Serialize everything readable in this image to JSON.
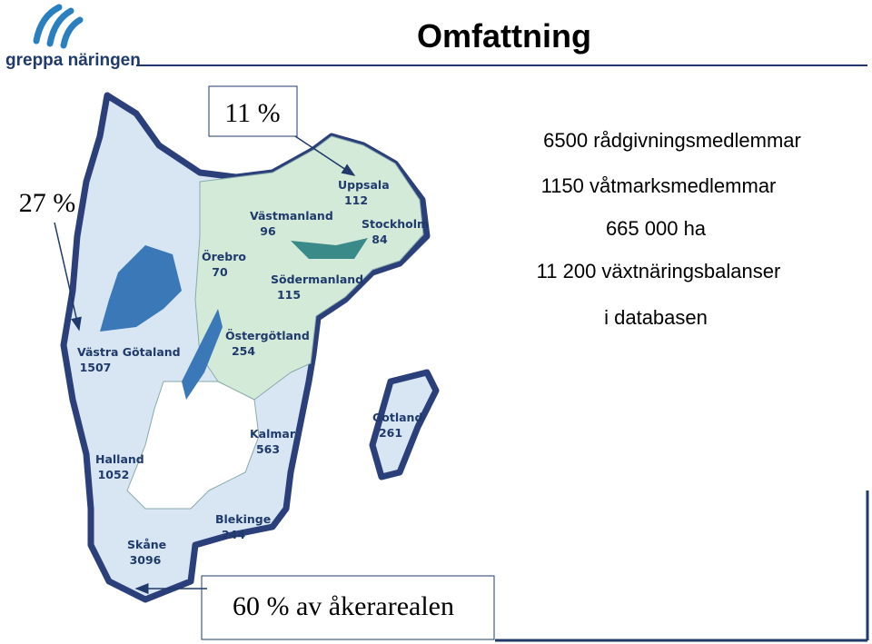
{
  "logo": {
    "text": "greppa näringen"
  },
  "title": "Omfattning",
  "callouts": [
    "11 %",
    "27 %",
    "60 % av åkerarealen"
  ],
  "stats": [
    "6500 rådgivningsmedlemmar",
    "1150 våtmarksmedlemmar",
    "665 000 ha",
    "11 200 växtnäringsbalanser",
    "i databasen"
  ],
  "regions": [
    {
      "name": "Uppsala",
      "value": 112
    },
    {
      "name": "Västmanland",
      "value": 96
    },
    {
      "name": "Stockholm",
      "value": 84
    },
    {
      "name": "Örebro",
      "value": 70
    },
    {
      "name": "Södermanland",
      "value": 115
    },
    {
      "name": "Östergötland",
      "value": 254
    },
    {
      "name": "Västra Götaland",
      "value": 1507
    },
    {
      "name": "Gotland",
      "value": 261
    },
    {
      "name": "Kalmar",
      "value": 563
    },
    {
      "name": "Halland",
      "value": 1052
    },
    {
      "name": "Blekinge",
      "value": 244
    },
    {
      "name": "Skåne",
      "value": 3096
    }
  ]
}
